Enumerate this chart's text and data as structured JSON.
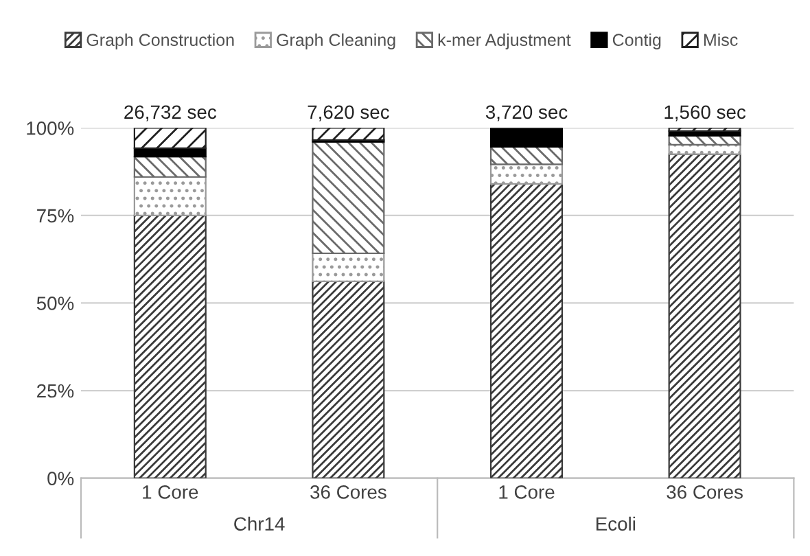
{
  "chart_data": {
    "type": "bar",
    "stacked": true,
    "categories": [
      "1 Core",
      "36 Cores",
      "1 Core",
      "36 Cores"
    ],
    "series": [
      {
        "name": "Graph Construction",
        "color": "#3a3a3a",
        "values": [
          75,
          56.2,
          84,
          92.5
        ]
      },
      {
        "name": "Graph Cleaning",
        "color": "#9a9a9a",
        "values": [
          11,
          8,
          5.6,
          2.7
        ]
      },
      {
        "name": "k-mer Adjustment",
        "color": "#6a6a6a",
        "values": [
          5.8,
          31.8,
          5,
          2.6
        ]
      },
      {
        "name": "Contig",
        "color": "#000000",
        "values": [
          2.4,
          0.5,
          5.4,
          1.3
        ]
      },
      {
        "name": "Misc",
        "color": "#202020",
        "values": [
          5.8,
          3.5,
          0,
          0.9
        ]
      }
    ],
    "annotations": [
      "26,732 sec",
      "7,620 sec",
      "3,720 sec",
      "1,560 sec",
      "Chr14",
      "Ecoli"
    ],
    "ylim": [
      0,
      100
    ],
    "yticks": [
      {
        "value": 0,
        "label": "0%"
      },
      {
        "value": 25,
        "label": "25%"
      },
      {
        "value": 50,
        "label": "50%"
      },
      {
        "value": 75,
        "label": "75%"
      },
      {
        "value": 100,
        "label": "100%"
      }
    ],
    "grid": "y",
    "legend": "top"
  }
}
